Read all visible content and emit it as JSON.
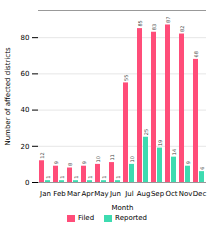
{
  "chart_data": {
    "type": "bar",
    "categories": [
      "Jan",
      "Feb",
      "Mar",
      "Apr",
      "May",
      "Jun",
      "Jul",
      "Aug",
      "Sep",
      "Oct",
      "Nov",
      "Dec"
    ],
    "series": [
      {
        "name": "Filed",
        "color": "#FF4D79",
        "values": [
          12,
          9,
          8,
          9,
          10,
          11,
          55,
          85,
          83,
          87,
          82,
          68
        ]
      },
      {
        "name": "Reported",
        "color": "#3DDBB0",
        "values": [
          1,
          1,
          1,
          1,
          1,
          1,
          10,
          25,
          19,
          14,
          9,
          6
        ]
      }
    ],
    "xlabel": "Month",
    "ylabel": "Number of affected districts",
    "ylim": [
      0,
      95
    ],
    "yticks": [
      0,
      20,
      40,
      60,
      80
    ],
    "grid": true,
    "legend": "bottom",
    "data_labels": true
  }
}
